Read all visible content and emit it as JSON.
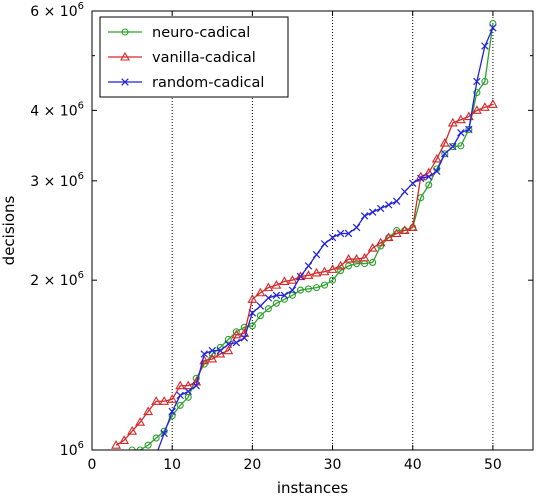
{
  "chart_data": {
    "type": "line",
    "title": "",
    "xlabel": "instances",
    "ylabel": "decisions",
    "xlim": [
      0,
      55
    ],
    "ylim": [
      1000000,
      6000000
    ],
    "yscale": "log",
    "grid": "x-dotted",
    "legend_position": "top-left",
    "xticks": [
      {
        "value": 0,
        "label": "0"
      },
      {
        "value": 10,
        "label": "10"
      },
      {
        "value": 20,
        "label": "20"
      },
      {
        "value": 30,
        "label": "30"
      },
      {
        "value": 40,
        "label": "40"
      },
      {
        "value": 50,
        "label": "50"
      }
    ],
    "yticks": [
      {
        "value": 1000000,
        "base": "10",
        "exp": "6"
      },
      {
        "value": 2000000,
        "base": "2 × 10",
        "exp": "6"
      },
      {
        "value": 3000000,
        "base": "3 × 10",
        "exp": "6"
      },
      {
        "value": 4000000,
        "base": "4 × 10",
        "exp": "6"
      },
      {
        "value": 6000000,
        "base": "6 × 10",
        "exp": "6"
      }
    ],
    "series": [
      {
        "name": "neuro-cadical",
        "color": "#2ca02c",
        "marker": "circle",
        "x": [
          4,
          5,
          6,
          7,
          8,
          9,
          10,
          11,
          12,
          13,
          14,
          15,
          16,
          17,
          18,
          19,
          20,
          21,
          22,
          23,
          24,
          25,
          26,
          27,
          28,
          29,
          30,
          31,
          32,
          33,
          34,
          35,
          36,
          37,
          38,
          39,
          40,
          41,
          42,
          43,
          44,
          45,
          46,
          47,
          48,
          49,
          50
        ],
        "y": [
          960000,
          1000000,
          1000000,
          1020000,
          1050000,
          1080000,
          1150000,
          1200000,
          1240000,
          1340000,
          1420000,
          1480000,
          1520000,
          1570000,
          1620000,
          1650000,
          1660000,
          1730000,
          1780000,
          1820000,
          1850000,
          1880000,
          1920000,
          1930000,
          1940000,
          1960000,
          2000000,
          2080000,
          2120000,
          2140000,
          2140000,
          2150000,
          2300000,
          2380000,
          2450000,
          2450000,
          2480000,
          2800000,
          2950000,
          3150000,
          3350000,
          3450000,
          3460000,
          3700000,
          4300000,
          4500000,
          5700000
        ]
      },
      {
        "name": "vanilla-cadical",
        "color": "#d62728",
        "marker": "triangle",
        "x": [
          3,
          4,
          5,
          6,
          7,
          8,
          9,
          10,
          11,
          12,
          13,
          14,
          15,
          16,
          17,
          18,
          19,
          20,
          21,
          22,
          23,
          24,
          25,
          26,
          27,
          28,
          29,
          30,
          31,
          32,
          33,
          34,
          35,
          36,
          37,
          38,
          39,
          40,
          41,
          42,
          43,
          44,
          45,
          46,
          47,
          48,
          49,
          50
        ],
        "y": [
          1020000,
          1040000,
          1080000,
          1120000,
          1170000,
          1220000,
          1220000,
          1230000,
          1300000,
          1300000,
          1320000,
          1440000,
          1450000,
          1480000,
          1500000,
          1600000,
          1610000,
          1850000,
          1900000,
          1940000,
          1960000,
          1990000,
          2000000,
          2030000,
          2040000,
          2060000,
          2070000,
          2090000,
          2120000,
          2180000,
          2180000,
          2190000,
          2280000,
          2330000,
          2380000,
          2420000,
          2450000,
          2480000,
          3050000,
          3100000,
          3280000,
          3500000,
          3800000,
          3850000,
          3900000,
          4000000,
          4050000,
          4100000
        ]
      },
      {
        "name": "random-cadical",
        "color": "#2222dd",
        "marker": "x",
        "x": [
          8,
          9,
          10,
          11,
          12,
          13,
          14,
          15,
          16,
          17,
          18,
          19,
          20,
          21,
          22,
          23,
          24,
          25,
          26,
          27,
          28,
          29,
          30,
          31,
          32,
          33,
          34,
          35,
          36,
          37,
          38,
          39,
          40,
          41,
          42,
          43,
          44,
          45,
          46,
          47,
          48,
          49,
          50
        ],
        "y": [
          980000,
          1070000,
          1170000,
          1250000,
          1270000,
          1300000,
          1480000,
          1500000,
          1500000,
          1540000,
          1550000,
          1580000,
          1750000,
          1800000,
          1860000,
          1880000,
          1880000,
          1920000,
          2030000,
          2120000,
          2220000,
          2320000,
          2380000,
          2420000,
          2420000,
          2480000,
          2600000,
          2640000,
          2680000,
          2720000,
          2760000,
          2870000,
          2970000,
          3030000,
          3050000,
          3120000,
          3350000,
          3450000,
          3650000,
          3700000,
          4500000,
          5200000,
          5600000
        ]
      }
    ]
  }
}
